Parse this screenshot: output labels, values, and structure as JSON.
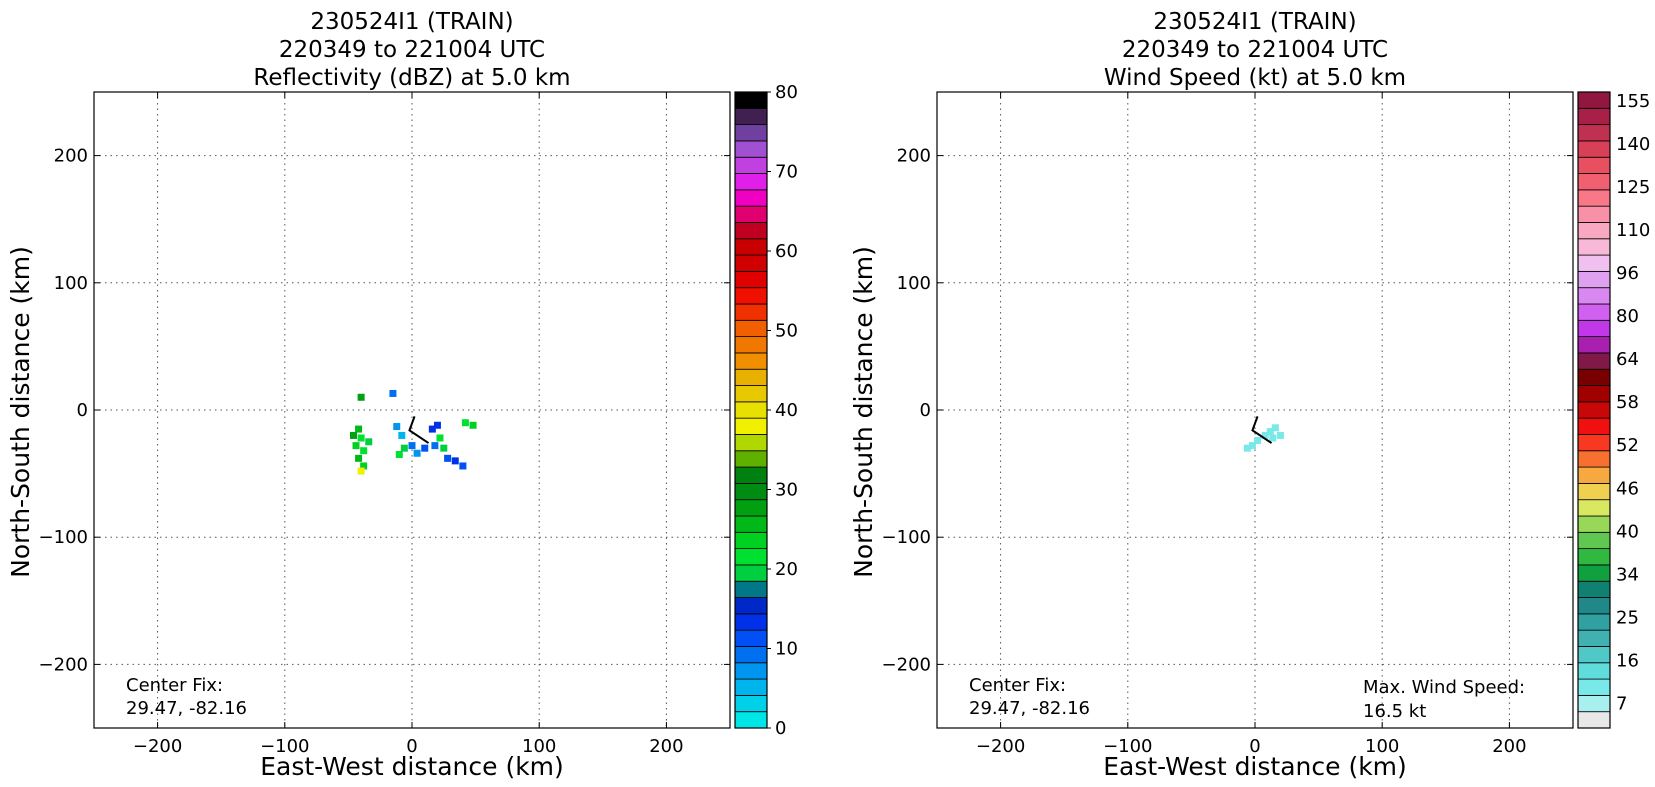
{
  "chart_data": [
    {
      "type": "heatmap",
      "title_lines": [
        "230524I1 (TRAIN)",
        "220349 to 221004 UTC",
        "Reflectivity (dBZ) at 5.0 km"
      ],
      "xlabel": "East-West distance (km)",
      "ylabel": "North-South distance (km)",
      "xlim": [
        -250,
        250
      ],
      "ylim": [
        -250,
        250
      ],
      "xticks": [
        -200,
        -100,
        0,
        100,
        200
      ],
      "yticks": [
        -200,
        -100,
        0,
        100,
        200
      ],
      "grid": true,
      "colorbar": {
        "min": 0,
        "max": 80,
        "ticks": [
          0,
          10,
          20,
          30,
          40,
          50,
          60,
          70,
          80
        ],
        "colors": [
          "#00e5e5",
          "#00d0e8",
          "#00b5ee",
          "#0096f0",
          "#0070f0",
          "#0050f5",
          "#0030e8",
          "#0028c8",
          "#007888",
          "#00d040",
          "#00e030",
          "#00d020",
          "#00b818",
          "#00a010",
          "#008c10",
          "#008010",
          "#60b000",
          "#b0d800",
          "#f0f000",
          "#e8e000",
          "#e8c800",
          "#e8b000",
          "#f09000",
          "#f07800",
          "#f06000",
          "#f03000",
          "#f01000",
          "#e00000",
          "#d00000",
          "#c80000",
          "#c00020",
          "#e00070",
          "#f000c0",
          "#e020e8",
          "#c040e0",
          "#a050d0",
          "#7040a0",
          "#402050",
          "#000000"
        ]
      },
      "annotation": "Center Fix:\n29.47, -82.16",
      "center_fix": "Center Fix:",
      "center_coords": "29.47, -82.16",
      "echo_cells": [
        {
          "x": -42,
          "y": -15,
          "dbz": 26
        },
        {
          "x": -40,
          "y": -22,
          "dbz": 22
        },
        {
          "x": -44,
          "y": -28,
          "dbz": 24
        },
        {
          "x": -38,
          "y": -32,
          "dbz": 21
        },
        {
          "x": -42,
          "y": -38,
          "dbz": 25
        },
        {
          "x": -38,
          "y": -44,
          "dbz": 23
        },
        {
          "x": -40,
          "y": -48,
          "dbz": 38
        },
        {
          "x": -34,
          "y": -25,
          "dbz": 20
        },
        {
          "x": -46,
          "y": -20,
          "dbz": 27
        },
        {
          "x": -40,
          "y": 10,
          "dbz": 28
        },
        {
          "x": -15,
          "y": 13,
          "dbz": 10
        },
        {
          "x": -10,
          "y": -35,
          "dbz": 21
        },
        {
          "x": -6,
          "y": -30,
          "dbz": 20
        },
        {
          "x": -12,
          "y": -13,
          "dbz": 8
        },
        {
          "x": -8,
          "y": -20,
          "dbz": 6
        },
        {
          "x": 0,
          "y": -28,
          "dbz": 9
        },
        {
          "x": 4,
          "y": -34,
          "dbz": 7
        },
        {
          "x": 10,
          "y": -30,
          "dbz": 12
        },
        {
          "x": 16,
          "y": -15,
          "dbz": 14
        },
        {
          "x": 20,
          "y": -12,
          "dbz": 13
        },
        {
          "x": 22,
          "y": -22,
          "dbz": 21
        },
        {
          "x": 25,
          "y": -30,
          "dbz": 20
        },
        {
          "x": 28,
          "y": -38,
          "dbz": 12
        },
        {
          "x": 34,
          "y": -40,
          "dbz": 13
        },
        {
          "x": 40,
          "y": -44,
          "dbz": 11
        },
        {
          "x": 18,
          "y": -28,
          "dbz": 10
        },
        {
          "x": 42,
          "y": -10,
          "dbz": 22
        },
        {
          "x": 48,
          "y": -12,
          "dbz": 24
        }
      ]
    },
    {
      "type": "heatmap",
      "title_lines": [
        "230524I1 (TRAIN)",
        "220349 to 221004 UTC",
        "Wind Speed (kt) at 5.0 km"
      ],
      "xlabel": "East-West distance (km)",
      "ylabel": "North-South distance (km)",
      "xlim": [
        -250,
        250
      ],
      "ylim": [
        -250,
        250
      ],
      "xticks": [
        -200,
        -100,
        0,
        100,
        200
      ],
      "yticks": [
        -200,
        -100,
        0,
        100,
        200
      ],
      "grid": true,
      "colorbar": {
        "ticks": [
          "7",
          "16",
          "25",
          "34",
          "40",
          "46",
          "52",
          "58",
          "64",
          "80",
          "96",
          "110",
          "125",
          "140",
          "155"
        ],
        "colors": [
          "#e8e8e8",
          "#a8f0f0",
          "#78e8e8",
          "#60dcdc",
          "#50c8c8",
          "#40b0b0",
          "#30a0a0",
          "#208888",
          "#108070",
          "#10a040",
          "#30b840",
          "#60c850",
          "#98d858",
          "#d8e860",
          "#f0d050",
          "#f8a840",
          "#f87030",
          "#f83820",
          "#f01010",
          "#c80808",
          "#a00000",
          "#780000",
          "#801848",
          "#a820b0",
          "#c038e8",
          "#d060f0",
          "#d888f0",
          "#e0a0f0",
          "#f0c0f0",
          "#f8b8d8",
          "#f8a8c0",
          "#f890a8",
          "#f87888",
          "#f06070",
          "#e85060",
          "#d84058",
          "#c03050",
          "#a82048",
          "#901840"
        ]
      },
      "center_fix": "Center Fix:",
      "center_coords": "29.47, -82.16",
      "max_wind_label": "Max. Wind Speed:",
      "max_wind_value": "16.5 kt",
      "wind_cells": [
        {
          "x": 8,
          "y": -20,
          "kt": 16
        },
        {
          "x": 12,
          "y": -17,
          "kt": 16
        },
        {
          "x": 16,
          "y": -14,
          "kt": 16
        },
        {
          "x": 20,
          "y": -20,
          "kt": 16
        },
        {
          "x": 14,
          "y": -22,
          "kt": 16
        },
        {
          "x": -2,
          "y": -28,
          "kt": 16
        },
        {
          "x": -6,
          "y": -30,
          "kt": 16
        },
        {
          "x": 2,
          "y": -24,
          "kt": 16
        }
      ]
    }
  ]
}
